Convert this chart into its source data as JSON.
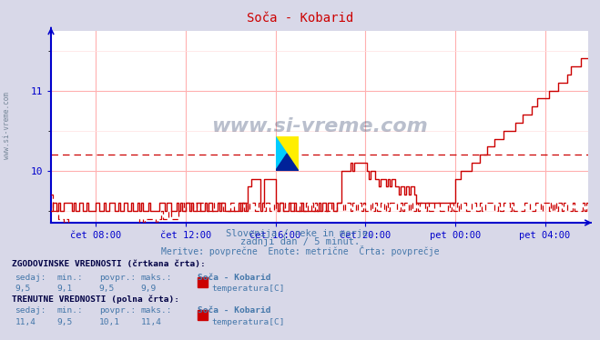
{
  "title": "Soča - Kobarid",
  "subtitle1": "Slovenija / reke in morje.",
  "subtitle2": "zadnji dan / 5 minut.",
  "subtitle3": "Meritve: povprečne  Enote: metrične  Črta: povprečje",
  "xlabel_ticks": [
    "čet 08:00",
    "čet 12:00",
    "čet 16:00",
    "čet 20:00",
    "pet 00:00",
    "pet 04:00"
  ],
  "bg_color": "#d8d8e8",
  "plot_bg_color": "#ffffff",
  "grid_color_major": "#ffb0b0",
  "grid_color_minor": "#ffe0e0",
  "line_color": "#cc0000",
  "axis_color": "#0000cc",
  "text_color": "#4477aa",
  "title_color": "#cc0000",
  "watermark": "www.si-vreme.com",
  "watermark_color": "#1a2e5a",
  "hist_label": "ZGODOVINSKE VREDNOSTI (črtkana črta):",
  "curr_label": "TRENUTNE VREDNOSTI (polna črta):",
  "cols": [
    "sedaj:",
    "min.:",
    "povpr.:",
    "maks.:"
  ],
  "station": "Soča - Kobarid",
  "measurement": "temperatura[C]",
  "hist_values": [
    9.5,
    9.1,
    9.5,
    9.9
  ],
  "curr_values": [
    11.4,
    9.5,
    10.1,
    11.4
  ],
  "hist_avg": 10.2,
  "ylim_min": 9.35,
  "ylim_max": 11.75,
  "n_points": 288,
  "tick_positions": [
    24,
    72,
    120,
    168,
    216,
    264
  ]
}
